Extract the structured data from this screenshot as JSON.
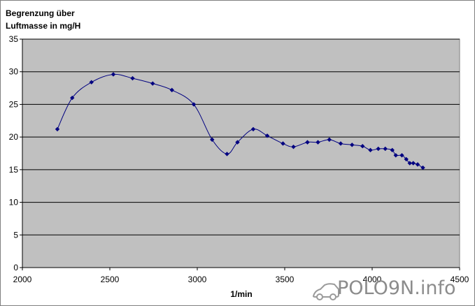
{
  "chart_data": {
    "type": "line",
    "title": "Begrenzung über\nLuftmasse in mg/H",
    "xlabel": "1/min",
    "ylabel": "",
    "xlim": [
      2000,
      4500
    ],
    "ylim": [
      0,
      35
    ],
    "x_ticks": [
      "2000",
      "2500",
      "3000",
      "3500",
      "4000",
      "4500"
    ],
    "y_ticks": [
      "0",
      "5",
      "10",
      "15",
      "20",
      "25",
      "30",
      "35"
    ],
    "grid": true,
    "legend": "none",
    "colors": {
      "series": "#000080",
      "plot_area": "#c0c0c0",
      "gridline": "#000000"
    },
    "series": [
      {
        "x": [
          2200,
          2285,
          2395,
          2520,
          2630,
          2745,
          2855,
          2980,
          3085,
          3170,
          3230,
          3320,
          3400,
          3490,
          3550,
          3630,
          3690,
          3755,
          3820,
          3885,
          3945,
          3990,
          4035,
          4075,
          4115,
          4135,
          4170,
          4195,
          4215,
          4235,
          4260,
          4290
        ],
        "y": [
          21.2,
          26.0,
          28.4,
          29.6,
          29.0,
          28.2,
          27.2,
          25.0,
          19.6,
          17.4,
          19.2,
          21.2,
          20.2,
          19.0,
          18.5,
          19.2,
          19.2,
          19.6,
          19.0,
          18.8,
          18.6,
          18.0,
          18.2,
          18.2,
          18.0,
          17.2,
          17.2,
          16.6,
          16.0,
          16.0,
          15.8,
          15.3
        ]
      }
    ]
  },
  "watermark": {
    "text": "POLO9N.info"
  }
}
